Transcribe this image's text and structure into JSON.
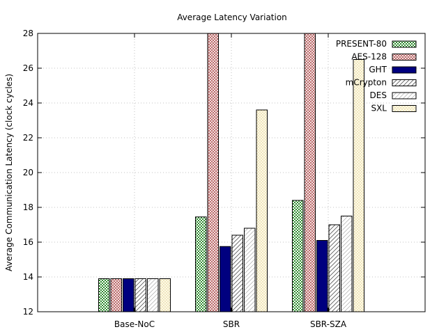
{
  "chart_data": {
    "type": "bar",
    "title": "Average Latency Variation",
    "xlabel": "",
    "ylabel": "Average Communication Latency (clock cycles)",
    "ylim": [
      12,
      28
    ],
    "yticks": [
      12,
      14,
      16,
      18,
      20,
      22,
      24,
      26,
      28
    ],
    "grid": true,
    "legend_position": "top-right",
    "categories": [
      "Base-NoC",
      "SBR",
      "SBR-SZA"
    ],
    "series": [
      {
        "name": "PRESENT-80",
        "values": [
          13.9,
          17.45,
          18.4
        ],
        "pattern": "checker",
        "color": "#2e8b2e"
      },
      {
        "name": "AES-128",
        "values": [
          13.9,
          28,
          28
        ],
        "pattern": "crosshatch",
        "color": "#b05050"
      },
      {
        "name": "GHT",
        "values": [
          13.9,
          15.75,
          16.1
        ],
        "pattern": "solid",
        "color": "#00007f"
      },
      {
        "name": "mCrypton",
        "values": [
          13.9,
          16.4,
          17.0
        ],
        "pattern": "diag-wide",
        "color": "#555555"
      },
      {
        "name": "DES",
        "values": [
          13.9,
          16.8,
          17.5
        ],
        "pattern": "diag-light",
        "color": "#999999"
      },
      {
        "name": "SXL",
        "values": [
          13.9,
          23.6,
          26.5
        ],
        "pattern": "dots",
        "color": "#c8b060"
      }
    ]
  }
}
